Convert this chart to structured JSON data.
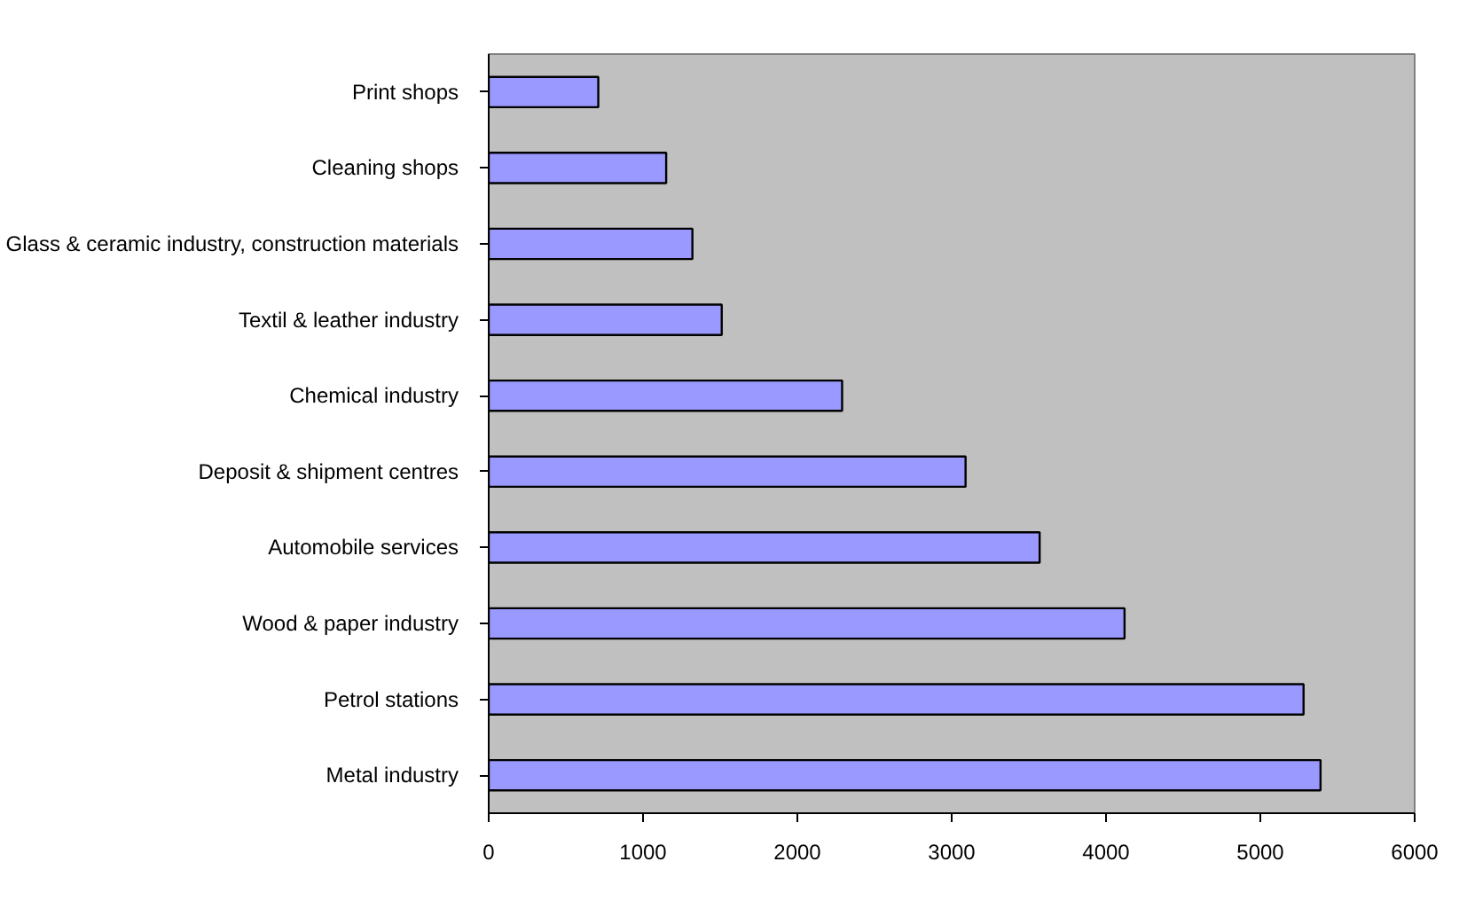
{
  "chart_data": {
    "type": "bar",
    "orientation": "horizontal",
    "categories": [
      "Print shops",
      "Cleaning shops",
      "Glass & ceramic industry, construction materials",
      "Textil & leather industry",
      "Chemical industry",
      "Deposit & shipment centres",
      "Automobile services",
      "Wood & paper industry",
      "Petrol stations",
      "Metal industry"
    ],
    "values": [
      710,
      1150,
      1320,
      1510,
      2290,
      3090,
      3570,
      4120,
      5280,
      5390
    ],
    "color": "#9999ff",
    "xlim": [
      0,
      6000
    ],
    "xticks": [
      0,
      1000,
      2000,
      3000,
      4000,
      5000,
      6000
    ]
  }
}
